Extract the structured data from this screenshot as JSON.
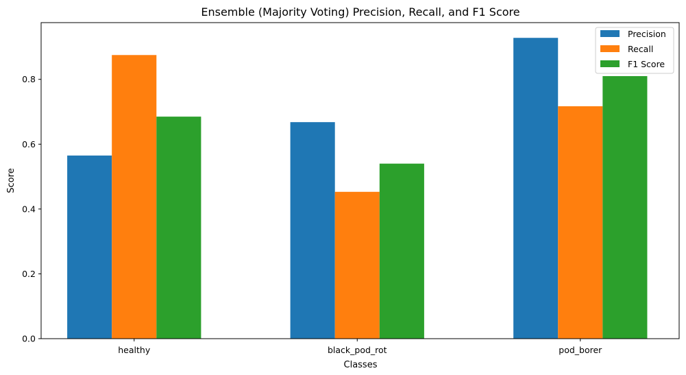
{
  "chart_data": {
    "type": "bar",
    "title": "Ensemble (Majority Voting) Precision, Recall, and F1 Score",
    "xlabel": "Classes",
    "ylabel": "Score",
    "categories": [
      "healthy",
      "black_pod_rot",
      "pod_borer"
    ],
    "series": [
      {
        "name": "Precision",
        "color": "#1f77b4",
        "values": [
          0.565,
          0.668,
          0.928
        ]
      },
      {
        "name": "Recall",
        "color": "#ff7f0e",
        "values": [
          0.875,
          0.453,
          0.717
        ]
      },
      {
        "name": "F1 Score",
        "color": "#2ca02c",
        "values": [
          0.685,
          0.54,
          0.81
        ]
      }
    ],
    "ylim": [
      0,
      0.975
    ],
    "yticks": [
      0.0,
      0.2,
      0.4,
      0.6,
      0.8
    ],
    "ytick_labels": [
      "0.0",
      "0.2",
      "0.4",
      "0.6",
      "0.8"
    ],
    "grid": false,
    "legend_position": "top-right"
  }
}
